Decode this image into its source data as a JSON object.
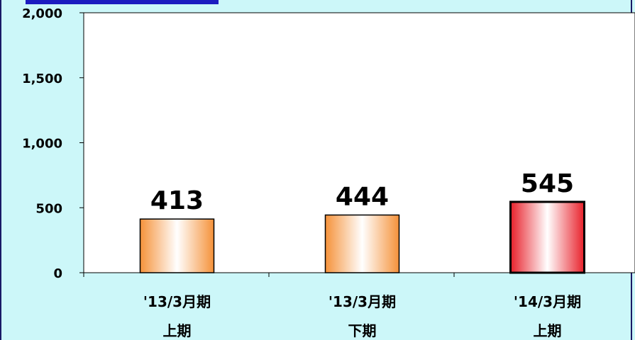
{
  "chart_data": {
    "type": "bar",
    "categories": [
      [
        "'13/3月期",
        "上期"
      ],
      [
        "'13/3月期",
        "下期"
      ],
      [
        "'14/3月期",
        "上期"
      ]
    ],
    "values": [
      413,
      444,
      545
    ],
    "value_labels": [
      "413",
      "444",
      "545"
    ],
    "ylim": [
      0,
      2000
    ],
    "yticks": [
      0,
      500,
      1000,
      1500,
      2000
    ],
    "ytick_labels": [
      "0",
      "500",
      "1,000",
      "1,500",
      "2,000"
    ],
    "grid": false,
    "legend": "none",
    "colors": {
      "background": "#ccf7f9",
      "plot_area": "#ffffff",
      "orange_edge": "#f5923a",
      "red_edge": "#e8202a",
      "bar_center": "#ffffff"
    },
    "highlighted_index": 2
  }
}
